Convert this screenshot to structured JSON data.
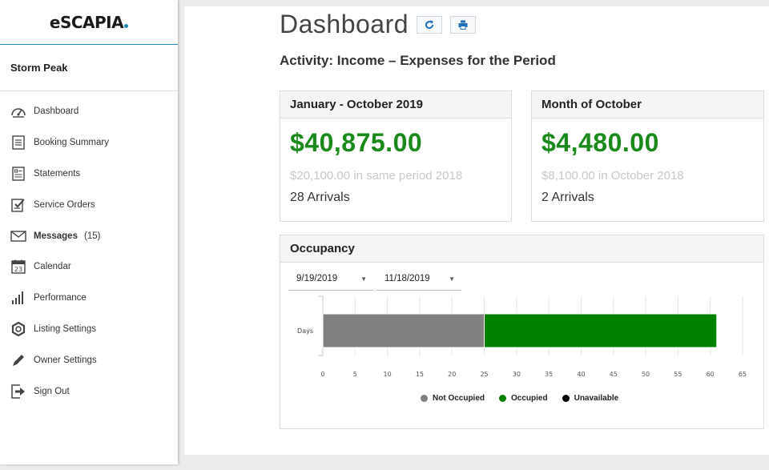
{
  "logo_text": "eSCAPIA",
  "owner_name": "Storm Peak",
  "nav": [
    {
      "label": "Dashboard",
      "icon": "gauge-icon"
    },
    {
      "label": "Booking Summary",
      "icon": "list-icon"
    },
    {
      "label": "Statements",
      "icon": "document-icon"
    },
    {
      "label": "Service Orders",
      "icon": "clipboard-check-icon"
    },
    {
      "label": "Messages",
      "icon": "envelope-icon",
      "count": "(15)"
    },
    {
      "label": "Calendar",
      "icon": "calendar-icon",
      "icon_text": "23"
    },
    {
      "label": "Performance",
      "icon": "signal-bars-icon"
    },
    {
      "label": "Listing Settings",
      "icon": "gear-icon"
    },
    {
      "label": "Owner Settings",
      "icon": "pencil-icon"
    },
    {
      "label": "Sign Out",
      "icon": "sign-out-icon"
    }
  ],
  "page_title": "Dashboard",
  "subtitle": "Activity: Income – Expenses for the Period",
  "cards": [
    {
      "header": "January - October 2019",
      "amount": "$40,875.00",
      "prior": "$20,100.00 in same period 2018",
      "arrivals": "28 Arrivals"
    },
    {
      "header": "Month of October",
      "amount": "$4,480.00",
      "prior": "$8,100.00 in October 2018",
      "arrivals": "2 Arrivals"
    }
  ],
  "occupancy": {
    "header": "Occupancy",
    "start_date": "9/19/2019",
    "end_date": "11/18/2019"
  },
  "chart_data": {
    "type": "bar",
    "orientation": "horizontal",
    "stacked": true,
    "categories": [
      "Days"
    ],
    "series": [
      {
        "name": "Not Occupied",
        "values": [
          25
        ],
        "color": "#808080"
      },
      {
        "name": "Occupied",
        "values": [
          36
        ],
        "color": "#008000"
      },
      {
        "name": "Unavailable",
        "values": [
          0
        ],
        "color": "#000000"
      }
    ],
    "xlim": [
      0,
      65
    ],
    "xticks": [
      "0",
      "5",
      "10",
      "15",
      "20",
      "25",
      "30",
      "35",
      "40",
      "45",
      "50",
      "55",
      "60",
      "65"
    ],
    "grid": true,
    "legend": "bottom"
  }
}
